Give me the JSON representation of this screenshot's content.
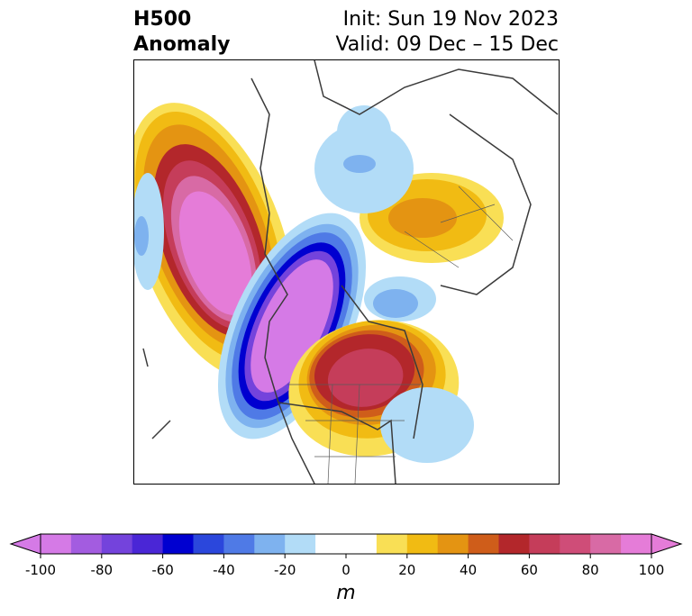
{
  "title": {
    "left_line1": "H500",
    "left_line2": "Anomaly",
    "right_line1": "Init: Sun 19 Nov 2023",
    "right_line2": "Valid: 09 Dec – 15 Dec"
  },
  "colorbar": {
    "unit": "m",
    "ticks": [
      "-100",
      "-80",
      "-60",
      "-40",
      "-20",
      "0",
      "20",
      "40",
      "60",
      "80",
      "100"
    ],
    "colors": [
      "#d57ae6",
      "#a35ce0",
      "#7443dc",
      "#4a26d6",
      "#0000d0",
      "#2b47dc",
      "#4f7ae6",
      "#7eb2ef",
      "#b2dcf7",
      "#ffffff",
      "#ffffff",
      "#f9df55",
      "#f1bb13",
      "#e49412",
      "#cf5d1a",
      "#b3272b",
      "#c53d5a",
      "#cf4d78",
      "#d86aa5",
      "#e57cd8"
    ]
  },
  "map": {
    "anomalies": [
      {
        "name": "ridge-west-pacific",
        "sign": "positive",
        "peak": 100
      },
      {
        "name": "trough-west-north-america",
        "sign": "negative",
        "peak": -100
      },
      {
        "name": "ridge-eastern-north-america",
        "sign": "positive",
        "peak": 70
      },
      {
        "name": "ridge-siberia",
        "sign": "positive",
        "peak": 40
      },
      {
        "name": "trough-north-atlantic",
        "sign": "negative",
        "peak": -30
      },
      {
        "name": "trough-arctic",
        "sign": "negative",
        "peak": -25
      }
    ]
  }
}
